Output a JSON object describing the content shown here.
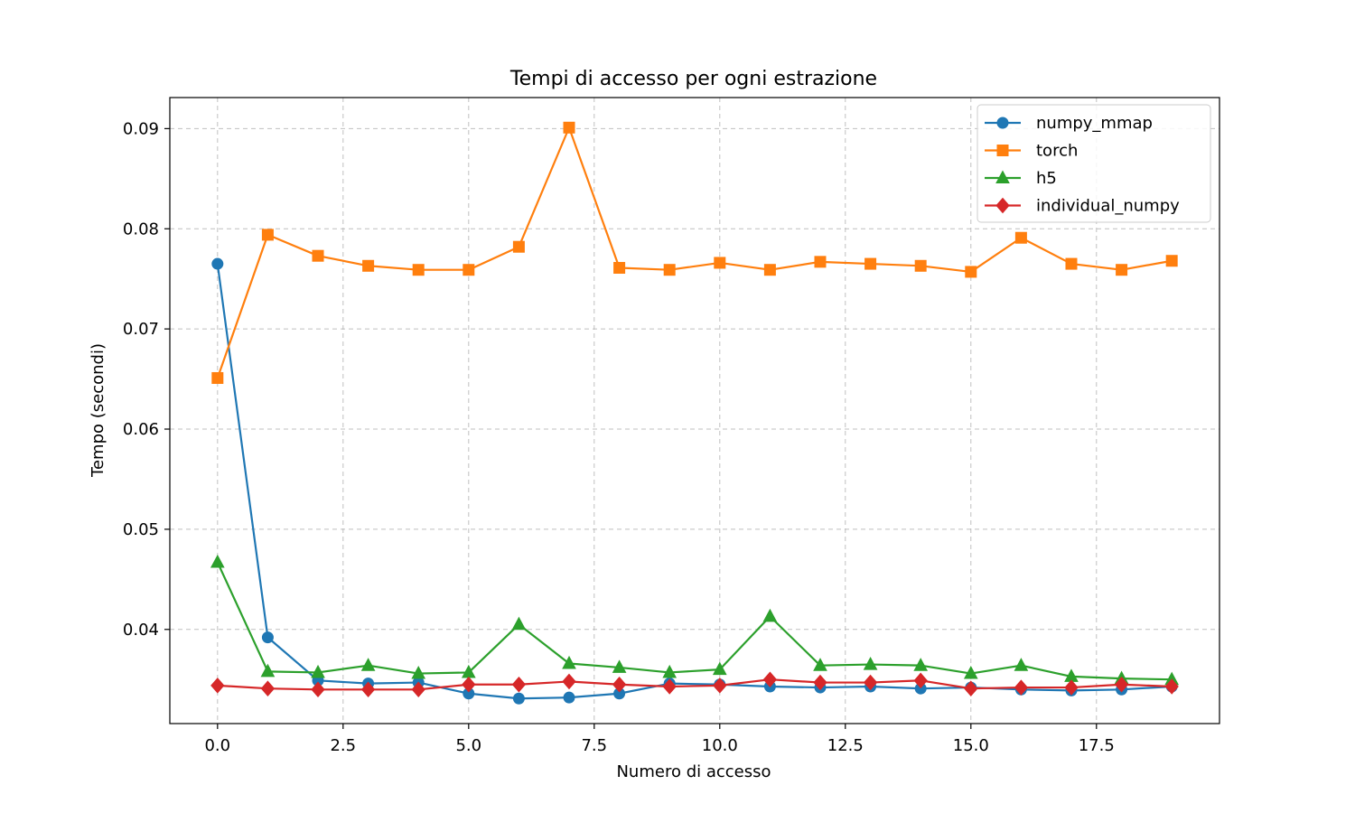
{
  "chart_data": {
    "type": "line",
    "title": "Tempi di accesso per ogni estrazione",
    "xlabel": "Numero di accesso",
    "ylabel": "Tempo (secondi)",
    "xlim": [
      -0.95,
      19.95
    ],
    "ylim": [
      0.0306,
      0.0931
    ],
    "xticks": [
      0,
      2.5,
      5,
      7.5,
      10,
      12.5,
      15,
      17.5
    ],
    "xtick_labels": [
      "0.0",
      "2.5",
      "5.0",
      "7.5",
      "10.0",
      "12.5",
      "15.0",
      "17.5"
    ],
    "yticks": [
      0.04,
      0.05,
      0.06,
      0.07,
      0.08,
      0.09
    ],
    "ytick_labels": [
      "0.04",
      "0.05",
      "0.06",
      "0.07",
      "0.08",
      "0.09"
    ],
    "grid": true,
    "legend_position": "top-right",
    "x": [
      0,
      1,
      2,
      3,
      4,
      5,
      6,
      7,
      8,
      9,
      10,
      11,
      12,
      13,
      14,
      15,
      16,
      17,
      18,
      19
    ],
    "series": [
      {
        "name": "numpy_mmap",
        "color": "#1f77b4",
        "marker": "circle",
        "values": [
          0.0765,
          0.0392,
          0.0349,
          0.0346,
          0.0347,
          0.0336,
          0.0331,
          0.0332,
          0.0336,
          0.0346,
          0.0345,
          0.0343,
          0.0342,
          0.0343,
          0.0341,
          0.0342,
          0.034,
          0.0339,
          0.034,
          0.0343
        ]
      },
      {
        "name": "torch",
        "color": "#ff7f0e",
        "marker": "square",
        "values": [
          0.0651,
          0.0794,
          0.0773,
          0.0763,
          0.0759,
          0.0759,
          0.0782,
          0.0901,
          0.0761,
          0.0759,
          0.0766,
          0.0759,
          0.0767,
          0.0765,
          0.0763,
          0.0757,
          0.0791,
          0.0765,
          0.0759,
          0.0768
        ]
      },
      {
        "name": "h5",
        "color": "#2ca02c",
        "marker": "triangle",
        "values": [
          0.0467,
          0.0358,
          0.0357,
          0.0364,
          0.0356,
          0.0357,
          0.0405,
          0.0366,
          0.0362,
          0.0357,
          0.036,
          0.0413,
          0.0364,
          0.0365,
          0.0364,
          0.0356,
          0.0364,
          0.0353,
          0.0351,
          0.035
        ]
      },
      {
        "name": "individual_numpy",
        "color": "#d62728",
        "marker": "diamond",
        "values": [
          0.0344,
          0.0341,
          0.034,
          0.034,
          0.034,
          0.0345,
          0.0345,
          0.0348,
          0.0345,
          0.0343,
          0.0344,
          0.035,
          0.0347,
          0.0347,
          0.0349,
          0.0341,
          0.0342,
          0.0342,
          0.0345,
          0.0343
        ]
      }
    ]
  }
}
